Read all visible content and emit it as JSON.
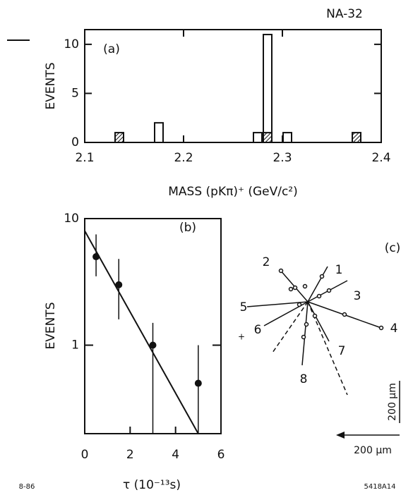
{
  "chart_data": [
    {
      "type": "histogram",
      "title": "NA-32",
      "annotation": "(a)",
      "x_label": "MASS  (pKπ)⁺  (GeV/c²)",
      "y_label": "EVENTS",
      "bins": [
        2.1,
        2.11,
        2.12,
        2.13,
        2.14,
        2.15,
        2.16,
        2.17,
        2.18,
        2.19,
        2.2,
        2.21,
        2.22,
        2.23,
        2.24,
        2.25,
        2.26,
        2.27,
        2.28,
        2.29,
        2.3,
        2.31,
        2.32,
        2.33,
        2.34,
        2.35,
        2.36,
        2.37,
        2.38,
        2.39,
        2.4
      ],
      "series": [
        {
          "color": "hatched",
          "values": [
            0,
            0,
            0,
            1,
            0,
            0,
            0,
            0,
            0,
            0,
            0,
            0,
            0,
            0,
            0,
            0,
            0,
            0,
            1,
            0,
            0,
            0,
            0,
            0,
            0,
            0,
            0,
            1,
            0,
            0
          ]
        },
        {
          "color": "open",
          "values": [
            0,
            0,
            0,
            0,
            0,
            0,
            0,
            2,
            0,
            0,
            0,
            0,
            0,
            0,
            0,
            0,
            0,
            1,
            10,
            0,
            1,
            0,
            0,
            0,
            0,
            0,
            0,
            0,
            0,
            0
          ]
        }
      ],
      "stacked": true,
      "xlim": [
        2.1,
        2.4
      ],
      "xticks": [
        2.1,
        2.2,
        2.3,
        2.4
      ],
      "ylim": [
        0,
        11.5
      ],
      "yticks": [
        0,
        5,
        10
      ]
    },
    {
      "type": "scatter",
      "annotation": "(b)",
      "x_label": "τ   (10⁻¹³s)",
      "y_label": "EVENTS",
      "x": [
        0.5,
        1.5,
        3,
        5
      ],
      "values": [
        5,
        3,
        1,
        0.5
      ],
      "err_minus": [
        1.5,
        1.4,
        0.8,
        0.3
      ],
      "err_plus": [
        2.5,
        1.8,
        0.5,
        0.5
      ],
      "fit": {
        "x": [
          0,
          5
        ],
        "values": [
          8,
          0.2
        ]
      },
      "log_y": true,
      "xlim": [
        0,
        6
      ],
      "xticks": [
        0,
        2,
        4,
        6
      ],
      "ylim": [
        0.2,
        10
      ],
      "yticks": [
        1,
        10
      ]
    }
  ],
  "diagram": {
    "annotation": "(c)",
    "tracks": [
      "1",
      "2",
      "3",
      "4",
      "5",
      "6",
      "7",
      "8"
    ],
    "scale_vertical": "200 μm",
    "scale_horizontal": "200 μm"
  },
  "footer": {
    "left": "8-86",
    "right": "5418A14"
  }
}
